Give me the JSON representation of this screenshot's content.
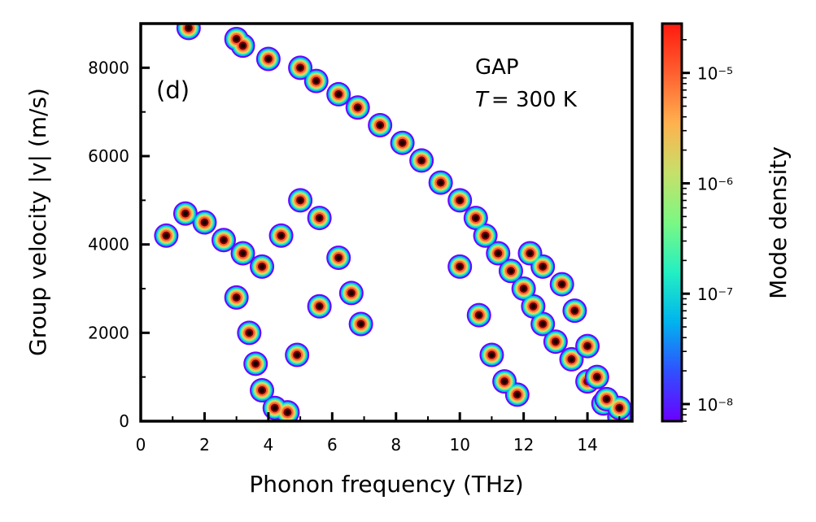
{
  "chart_data": {
    "type": "scatter",
    "panel_label": "(d)",
    "title": "",
    "xlabel": "Phonon frequency (THz)",
    "ylabel": "Group velocity |v| (m/s)",
    "xlim": [
      0,
      15.4
    ],
    "ylim": [
      0,
      9000
    ],
    "xticks": [
      0,
      2,
      4,
      6,
      8,
      10,
      12,
      14
    ],
    "yticks": [
      0,
      2000,
      4000,
      6000,
      8000
    ],
    "grid": false,
    "annotation_lines": [
      "GAP",
      "T = 300 K"
    ],
    "annotation_parts": {
      "method": "GAP",
      "temp_symbol": "T",
      "temp_value": "= 300 K"
    },
    "colorbar": {
      "label": "Mode density",
      "scale": "log",
      "range": [
        7e-09,
        2.8e-05
      ],
      "colormap": "rainbow",
      "colors": [
        "#6a00ff",
        "#3050ff",
        "#00b4ee",
        "#23f0c2",
        "#7bf883",
        "#c6e06a",
        "#ffb14e",
        "#ff6030",
        "#ff1a0e"
      ],
      "ticks": [
        {
          "value": 1e-08,
          "label": "10⁻⁸"
        },
        {
          "value": 1e-07,
          "label": "10⁻⁷"
        },
        {
          "value": 1e-06,
          "label": "10⁻⁶"
        },
        {
          "value": 1e-05,
          "label": "10⁻⁵"
        }
      ]
    },
    "series": [
      {
        "points": [
          [
            1.5,
            8900
          ],
          [
            3.0,
            8650
          ],
          [
            3.2,
            8500
          ],
          [
            4.0,
            8200
          ],
          [
            5.0,
            8000
          ],
          [
            5.5,
            7700
          ],
          [
            6.2,
            7400
          ],
          [
            6.8,
            7100
          ],
          [
            7.5,
            6700
          ],
          [
            8.2,
            6300
          ],
          [
            8.8,
            5900
          ],
          [
            9.4,
            5400
          ],
          [
            10.0,
            5000
          ],
          [
            10.5,
            4600
          ],
          [
            10.8,
            4200
          ],
          [
            11.2,
            3800
          ],
          [
            11.6,
            3400
          ],
          [
            12.0,
            3000
          ],
          [
            12.3,
            2600
          ],
          [
            12.6,
            2200
          ],
          [
            13.0,
            1800
          ],
          [
            13.5,
            1400
          ],
          [
            14.0,
            900
          ],
          [
            14.5,
            400
          ],
          [
            15.0,
            100
          ]
        ]
      },
      {
        "points": [
          [
            0.8,
            4200
          ],
          [
            1.4,
            4700
          ],
          [
            2.0,
            4500
          ],
          [
            2.6,
            4100
          ],
          [
            3.2,
            3800
          ],
          [
            3.8,
            3500
          ],
          [
            4.4,
            4200
          ],
          [
            5.0,
            5000
          ],
          [
            5.6,
            4600
          ],
          [
            6.2,
            3700
          ],
          [
            6.6,
            2900
          ],
          [
            6.9,
            2200
          ],
          [
            3.0,
            2800
          ],
          [
            3.4,
            2000
          ],
          [
            3.6,
            1300
          ],
          [
            3.8,
            700
          ],
          [
            4.2,
            300
          ],
          [
            4.6,
            200
          ],
          [
            4.9,
            1500
          ],
          [
            5.6,
            2600
          ]
        ]
      },
      {
        "points": [
          [
            10.0,
            3500
          ],
          [
            10.6,
            2400
          ],
          [
            11.0,
            1500
          ],
          [
            11.4,
            900
          ],
          [
            11.8,
            600
          ],
          [
            12.2,
            3800
          ],
          [
            12.6,
            3500
          ],
          [
            13.2,
            3100
          ],
          [
            13.6,
            2500
          ],
          [
            14.0,
            1700
          ],
          [
            14.3,
            1000
          ],
          [
            14.6,
            500
          ],
          [
            15.0,
            300
          ]
        ]
      }
    ]
  }
}
